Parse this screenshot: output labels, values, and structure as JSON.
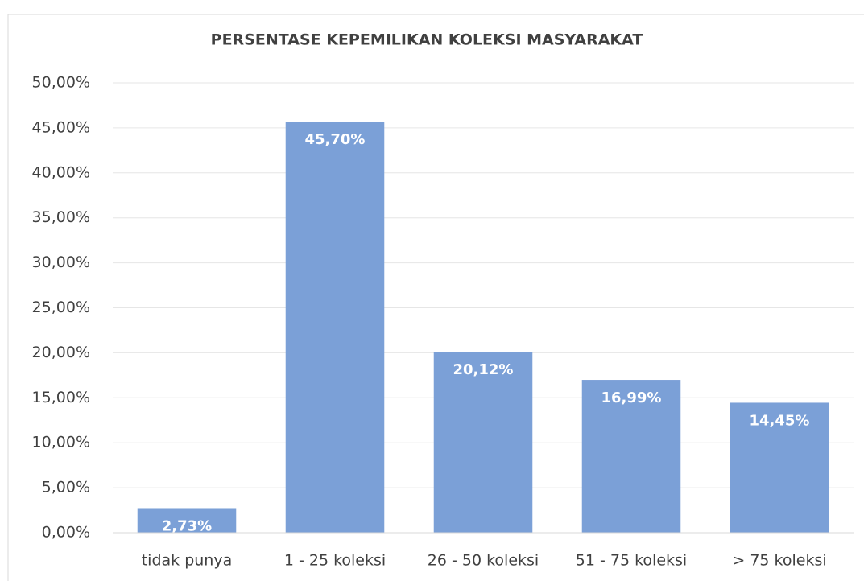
{
  "chart_data": {
    "type": "bar",
    "title": "PERSENTASE KEPEMILIKAN KOLEKSI MASYARAKAT",
    "categories": [
      "tidak punya",
      "1 - 25 koleksi",
      "26 - 50 koleksi",
      "51 - 75 koleksi",
      "> 75 koleksi"
    ],
    "values": [
      2.73,
      45.7,
      20.12,
      16.99,
      14.45
    ],
    "value_labels": [
      "2,73%",
      "45,70%",
      "20,12%",
      "16,99%",
      "14,45%"
    ],
    "color": "#7ba0d7",
    "ylim": [
      0,
      50
    ],
    "yticks": [
      {
        "value": 0,
        "label": "0,00%"
      },
      {
        "value": 5,
        "label": "5,00%"
      },
      {
        "value": 10,
        "label": "10,00%"
      },
      {
        "value": 15,
        "label": "15,00%"
      },
      {
        "value": 20,
        "label": "20,00%"
      },
      {
        "value": 25,
        "label": "25,00%"
      },
      {
        "value": 30,
        "label": "30,00%"
      },
      {
        "value": 35,
        "label": "35,00%"
      },
      {
        "value": 40,
        "label": "40,00%"
      },
      {
        "value": 45,
        "label": "45,00%"
      },
      {
        "value": 50,
        "label": "50,00%"
      }
    ],
    "grid": true
  }
}
